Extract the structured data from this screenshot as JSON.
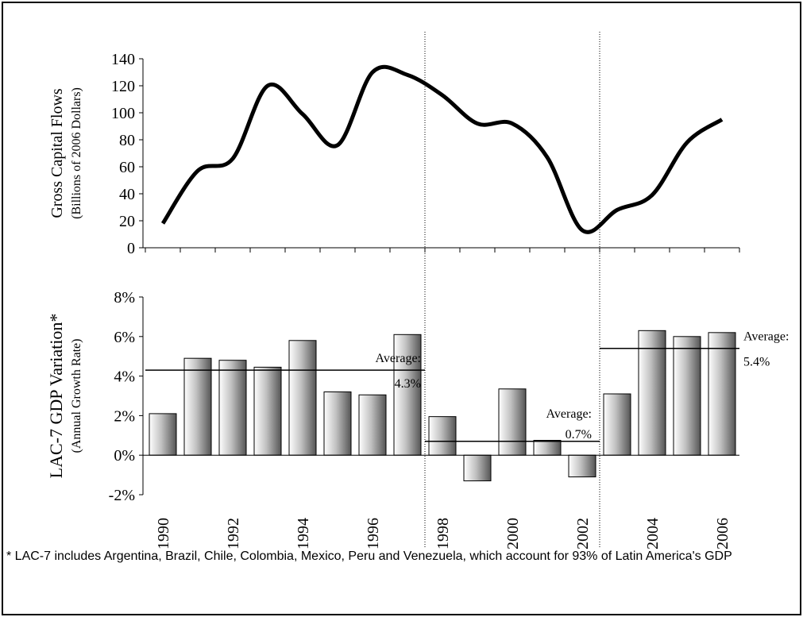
{
  "chart_data": [
    {
      "type": "line",
      "ylabel": "Gross Capital Flows",
      "ylabel_sub": "(Billions of 2006 Dollars)",
      "values": [
        18,
        57,
        66,
        120,
        99,
        76,
        130,
        128,
        113,
        92,
        92,
        67,
        13,
        28,
        39,
        78,
        95
      ],
      "color": "#000000",
      "ylim": [
        0,
        140
      ],
      "yticks": [
        0,
        20,
        40,
        60,
        80,
        100,
        120,
        140
      ]
    },
    {
      "type": "bar",
      "ylabel": "LAC-7 GDP Variation*",
      "ylabel_sub": "(Annual Growth Rate)",
      "categories": [
        "1990",
        null,
        "1992",
        null,
        "1994",
        null,
        "1996",
        null,
        "1998",
        null,
        "2000",
        null,
        "2002",
        null,
        "2004",
        null,
        "2006"
      ],
      "values": [
        2.1,
        4.9,
        4.8,
        4.45,
        5.8,
        3.2,
        3.05,
        6.1,
        1.95,
        -1.3,
        3.35,
        0.75,
        -1.1,
        3.1,
        6.3,
        6.0,
        6.2
      ],
      "color": "#c0c0c0",
      "ylim": [
        -2,
        8
      ],
      "yticks": [
        {
          "value": -2,
          "label": "-2%"
        },
        {
          "value": 0,
          "label": "0%"
        },
        {
          "value": 2,
          "label": "2%"
        },
        {
          "value": 4,
          "label": "4%"
        },
        {
          "value": 6,
          "label": "6%"
        },
        {
          "value": 8,
          "label": "8%"
        }
      ],
      "averages": [
        {
          "label": "Average:",
          "value": 4.3,
          "value_label": "4.3%"
        },
        {
          "label": "Average:",
          "value": 0.7,
          "value_label": "0.7%"
        },
        {
          "label": "Average:",
          "value": 5.4,
          "value_label": "5.4%"
        }
      ],
      "note": "* LAC-7 includes Argentina, Brazil, Chile, Colombia, Mexico, Peru and Venezuela, which account for 93% of Latin America's GDP"
    }
  ]
}
